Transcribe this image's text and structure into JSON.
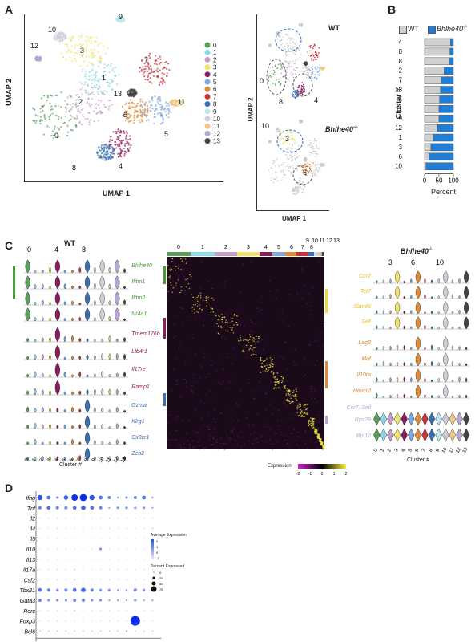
{
  "panels": {
    "A": "A",
    "B": "B",
    "C": "C",
    "D": "D"
  },
  "panelA": {
    "xlabel": "UMAP 1",
    "ylabel": "UMAP 2",
    "clusters": [
      "0",
      "1",
      "2",
      "3",
      "4",
      "5",
      "6",
      "7",
      "8",
      "9",
      "10",
      "11",
      "12",
      "13"
    ],
    "colors": [
      "#5aa05a",
      "#8fd9e6",
      "#c79cc8",
      "#f2e36a",
      "#8b1d5a",
      "#7fa8dc",
      "#e08a3a",
      "#c9323a",
      "#3a6fb0",
      "#bfe8f0",
      "#d0cfd8",
      "#f0c88a",
      "#b8a8d0",
      "#444444"
    ],
    "wt": "WT",
    "ko": "Bhlhe40",
    "ko_sup": "-/-"
  },
  "panelB": {
    "legend_wt": "WT",
    "legend_ko": "Bhlhe40",
    "ko_sup": "-/-",
    "ylabel": "Cluster #",
    "xlabel": "Percent",
    "xticks": [
      "0",
      "50",
      "100"
    ],
    "order": [
      "4",
      "0",
      "8",
      "2",
      "7",
      "13",
      "5",
      "11",
      "9",
      "12",
      "1",
      "3",
      "6",
      "10"
    ],
    "wt_pct": [
      90,
      88,
      85,
      68,
      57,
      55,
      52,
      50,
      50,
      45,
      30,
      22,
      15,
      5
    ]
  },
  "panelC": {
    "wt_title": "WT",
    "ko_title": "Bhlhe40",
    "ko_sup": "-/-",
    "top_wt": [
      "0",
      "4",
      "8"
    ],
    "top_ko": [
      "3",
      "6",
      "10"
    ],
    "genes_left_green": [
      "Bhlhe40",
      "Ifitm1",
      "Ifitm2",
      "Nr4a1"
    ],
    "genes_left_purple": [
      "Tmem176b",
      "Ltb4r1",
      "Il17re",
      "Ramp1"
    ],
    "genes_left_blue": [
      "Gzma",
      "Klrg1",
      "Cx3cr1",
      "Zeb2"
    ],
    "genes_right_yellow": [
      "Ccr7",
      "Tcf7",
      "Slamf6",
      "Sell"
    ],
    "genes_right_orange": [
      "Lag3",
      "Maf",
      "Il10ra",
      "Havcr2"
    ],
    "genes_right_lav": [
      "Ccr7, Sell",
      "Rps29",
      "Rpl12"
    ],
    "xlabel": "Cluster #",
    "xticks": [
      "0",
      "1",
      "2",
      "3",
      "4",
      "5",
      "6",
      "7",
      "8",
      "9",
      "10",
      "11",
      "12",
      "13"
    ],
    "heat_top": [
      "0",
      "1",
      "2",
      "3",
      "4",
      "5",
      "6",
      "7",
      "8"
    ],
    "heat_top2": [
      "9",
      "10",
      "11",
      "12",
      "13"
    ],
    "expression_label": "Expression",
    "expr_ticks": [
      "-2",
      "-1",
      "0",
      "1",
      "2"
    ],
    "yticks": [
      "0",
      "1",
      "2",
      "3"
    ]
  },
  "panelD": {
    "genes": [
      "Ifng",
      "Tnf",
      "Il2",
      "Il4",
      "Il5",
      "Il10",
      "Il13",
      "Il17a",
      "Csf2",
      "Tbx21",
      "Gata3",
      "Rorc",
      "Foxp3",
      "Bcl6"
    ],
    "legend_avg": "Average Expression",
    "avg_ticks": [
      "2",
      "1",
      "0",
      "-1"
    ],
    "legend_pct": "Percent Expressed",
    "pct_ticks": [
      "0",
      "25",
      "50",
      "75"
    ],
    "dots": [
      [
        0.8,
        0.6,
        0.4,
        0.7,
        1.0,
        1.1,
        0.8,
        0.6,
        0.5,
        0.3,
        0.4,
        0.5,
        0.6,
        0.3
      ],
      [
        0.5,
        0.6,
        0.5,
        0.5,
        0.6,
        0.7,
        0.6,
        0.5,
        0.3,
        0.4,
        0.4,
        0.4,
        0.4,
        0.3
      ],
      [
        0.1,
        0.1,
        0.1,
        0.1,
        0.1,
        0.1,
        0.1,
        0.1,
        0.2,
        0.1,
        0.1,
        0.1,
        0.1,
        0.1
      ],
      [
        0.1,
        0.1,
        0.1,
        0.1,
        0.1,
        0.1,
        0.1,
        0.1,
        0.1,
        0.1,
        0.1,
        0.1,
        0.1,
        0.2
      ],
      [
        0.0,
        0.0,
        0.0,
        0.0,
        0.0,
        0.0,
        0.0,
        0.0,
        0.0,
        0.0,
        0.0,
        0.0,
        0.0,
        0.0
      ],
      [
        0.1,
        0.1,
        0.1,
        0.1,
        0.1,
        0.1,
        0.1,
        0.4,
        0.1,
        0.1,
        0.1,
        0.1,
        0.1,
        0.1
      ],
      [
        0.0,
        0.0,
        0.0,
        0.0,
        0.0,
        0.0,
        0.0,
        0.0,
        0.0,
        0.0,
        0.0,
        0.0,
        0.0,
        0.0
      ],
      [
        0.1,
        0.1,
        0.1,
        0.1,
        0.2,
        0.1,
        0.1,
        0.1,
        0.1,
        0.1,
        0.1,
        0.1,
        0.1,
        0.1
      ],
      [
        0.1,
        0.1,
        0.1,
        0.1,
        0.2,
        0.1,
        0.1,
        0.1,
        0.1,
        0.1,
        0.1,
        0.1,
        0.1,
        0.1
      ],
      [
        0.6,
        0.5,
        0.4,
        0.5,
        0.6,
        0.7,
        0.5,
        0.4,
        0.4,
        0.3,
        0.3,
        0.5,
        0.4,
        0.3
      ],
      [
        0.5,
        0.4,
        0.4,
        0.4,
        0.5,
        0.5,
        0.4,
        0.4,
        0.3,
        0.3,
        0.3,
        0.4,
        0.3,
        0.3
      ],
      [
        0.1,
        0.1,
        0.1,
        0.1,
        0.2,
        0.1,
        0.1,
        0.1,
        0.1,
        0.1,
        0.1,
        0.1,
        0.1,
        0.1
      ],
      [
        0.1,
        0.1,
        0.1,
        0.1,
        0.1,
        0.1,
        0.1,
        0.1,
        0.1,
        0.1,
        0.1,
        1.5,
        0.1,
        0.1
      ],
      [
        0.2,
        0.2,
        0.2,
        0.2,
        0.2,
        0.2,
        0.2,
        0.2,
        0.2,
        0.2,
        0.3,
        0.2,
        0.2,
        0.2
      ]
    ]
  }
}
